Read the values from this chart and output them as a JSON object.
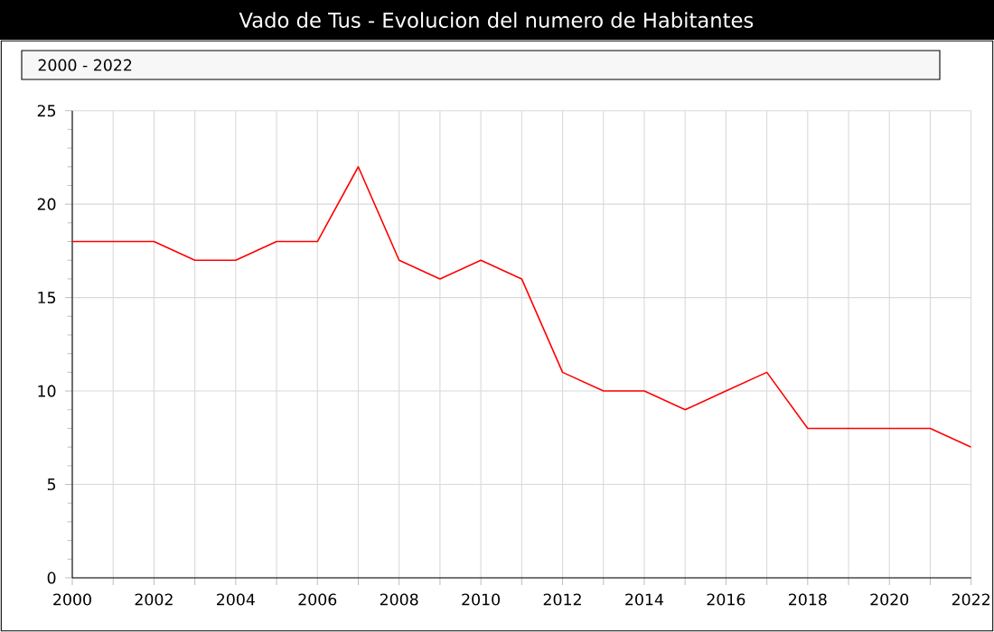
{
  "chart_data": {
    "type": "line",
    "title": "Vado de Tus - Evolucion del numero de Habitantes",
    "annotations": [
      "2000 - 2022"
    ],
    "x": [
      2000,
      2001,
      2002,
      2003,
      2004,
      2005,
      2006,
      2007,
      2008,
      2009,
      2010,
      2011,
      2012,
      2013,
      2014,
      2015,
      2016,
      2017,
      2018,
      2019,
      2020,
      2021,
      2022
    ],
    "series": [
      {
        "color": "#ff0000",
        "values": [
          18,
          18,
          18,
          17,
          17,
          18,
          18,
          22,
          17,
          16,
          17,
          16,
          11,
          10,
          10,
          9,
          10,
          11,
          8,
          8,
          8,
          8,
          7
        ]
      }
    ],
    "xlim": [
      2000,
      2022
    ],
    "ylim": [
      0,
      25
    ],
    "xticks": [
      2000,
      {
        "value": 2001,
        "label": null
      },
      2002,
      {
        "value": 2003,
        "label": null
      },
      2004,
      {
        "value": 2005,
        "label": null
      },
      2006,
      {
        "value": 2007,
        "label": null
      },
      2008,
      {
        "value": 2009,
        "label": null
      },
      2010,
      {
        "value": 2011,
        "label": null
      },
      2012,
      {
        "value": 2013,
        "label": null
      },
      2014,
      {
        "value": 2015,
        "label": null
      },
      2016,
      {
        "value": 2017,
        "label": null
      },
      2018,
      {
        "value": 2019,
        "label": null
      },
      2020,
      {
        "value": 2021,
        "label": null
      },
      2022
    ],
    "yticks": [
      0,
      5,
      10,
      15,
      20,
      25
    ],
    "grid": true,
    "marker": "none",
    "line_style": "solid"
  }
}
